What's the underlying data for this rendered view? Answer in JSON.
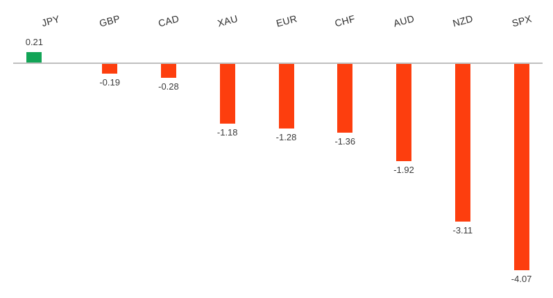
{
  "chart_data": {
    "type": "bar",
    "title": "",
    "xlabel": "",
    "ylabel": "",
    "categories": [
      "JPY",
      "GBP",
      "CAD",
      "XAU",
      "EUR",
      "CHF",
      "AUD",
      "NZD",
      "SPX"
    ],
    "values": [
      0.21,
      -0.19,
      -0.28,
      -1.18,
      -1.28,
      -1.36,
      -1.92,
      -3.11,
      -4.07
    ],
    "data_labels": [
      "0.21",
      "-0.19",
      "-0.28",
      "-1.18",
      "-1.28",
      "-1.36",
      "-1.92",
      "-3.11",
      "-4.07"
    ],
    "ylim": [
      -4.5,
      0.5
    ],
    "grid": false,
    "legend_position": "none",
    "colors": {
      "positive_bar": "#12a456",
      "negative_bar": "#fd3e0e",
      "axis_line": "#bfbfbf",
      "category_text": "#2e2e2e",
      "value_text": "#3a3a3a",
      "background": "#ffffff"
    }
  }
}
